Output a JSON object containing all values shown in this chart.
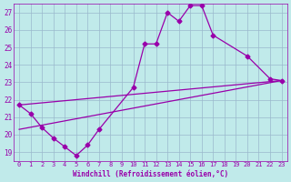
{
  "xlabel": "Windchill (Refroidissement éolien,°C)",
  "bg_color": "#c0eaea",
  "grid_color": "#9ab8cc",
  "line_color": "#9900aa",
  "xlim_min": -0.5,
  "xlim_max": 23.5,
  "ylim_min": 18.5,
  "ylim_max": 27.5,
  "xticks": [
    0,
    1,
    2,
    3,
    4,
    5,
    6,
    7,
    8,
    9,
    10,
    11,
    12,
    13,
    14,
    15,
    16,
    17,
    18,
    19,
    20,
    21,
    22,
    23
  ],
  "yticks": [
    19,
    20,
    21,
    22,
    23,
    24,
    25,
    26,
    27
  ],
  "line1_x": [
    0,
    1,
    2,
    3,
    4,
    5,
    6,
    7,
    10,
    11,
    12,
    13,
    14,
    15,
    16,
    17,
    20,
    22,
    23
  ],
  "line1_y": [
    21.7,
    21.2,
    20.4,
    19.8,
    19.3,
    18.8,
    19.4,
    20.3,
    22.7,
    25.2,
    25.2,
    27.0,
    26.5,
    27.4,
    27.4,
    25.7,
    24.5,
    23.2,
    23.1
  ],
  "line2_x": [
    0,
    23
  ],
  "line2_y": [
    21.7,
    23.1
  ],
  "line3_x": [
    0,
    23
  ],
  "line3_y": [
    20.3,
    23.1
  ],
  "spine_color": "#9900aa",
  "tick_fontsize": 5,
  "xlabel_fontsize": 5.5,
  "linewidth": 0.9,
  "markersize": 2.5
}
